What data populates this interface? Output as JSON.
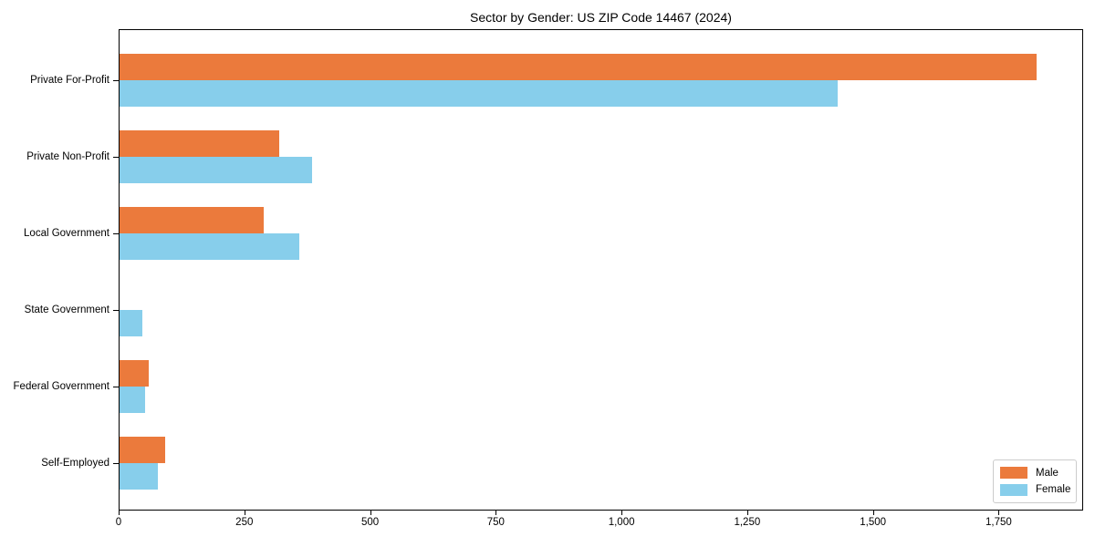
{
  "chart_data": {
    "type": "bar",
    "orientation": "horizontal",
    "title": "Sector by Gender: US ZIP Code 14467 (2024)",
    "xlabel": "",
    "ylabel": "",
    "categories": [
      "Private For-Profit",
      "Private Non-Profit",
      "Local Government",
      "State Government",
      "Federal Government",
      "Self-Employed"
    ],
    "series": [
      {
        "name": "Male",
        "color": "#EB7A3C",
        "values": [
          1826,
          320,
          288,
          0,
          60,
          93
        ]
      },
      {
        "name": "Female",
        "color": "#87CEEB",
        "values": [
          1430,
          384,
          360,
          48,
          52,
          78
        ]
      }
    ],
    "xlim": [
      0,
      1918
    ],
    "xticks": [
      {
        "v": 0,
        "label": "0"
      },
      {
        "v": 250,
        "label": "250"
      },
      {
        "v": 500,
        "label": "500"
      },
      {
        "v": 750,
        "label": "750"
      },
      {
        "v": 1000,
        "label": "1,000"
      },
      {
        "v": 1250,
        "label": "1,250"
      },
      {
        "v": 1500,
        "label": "1,500"
      },
      {
        "v": 1750,
        "label": "1,750"
      }
    ],
    "grid": false,
    "legend": {
      "position": "lower right",
      "entries": [
        "Male",
        "Female"
      ]
    }
  }
}
